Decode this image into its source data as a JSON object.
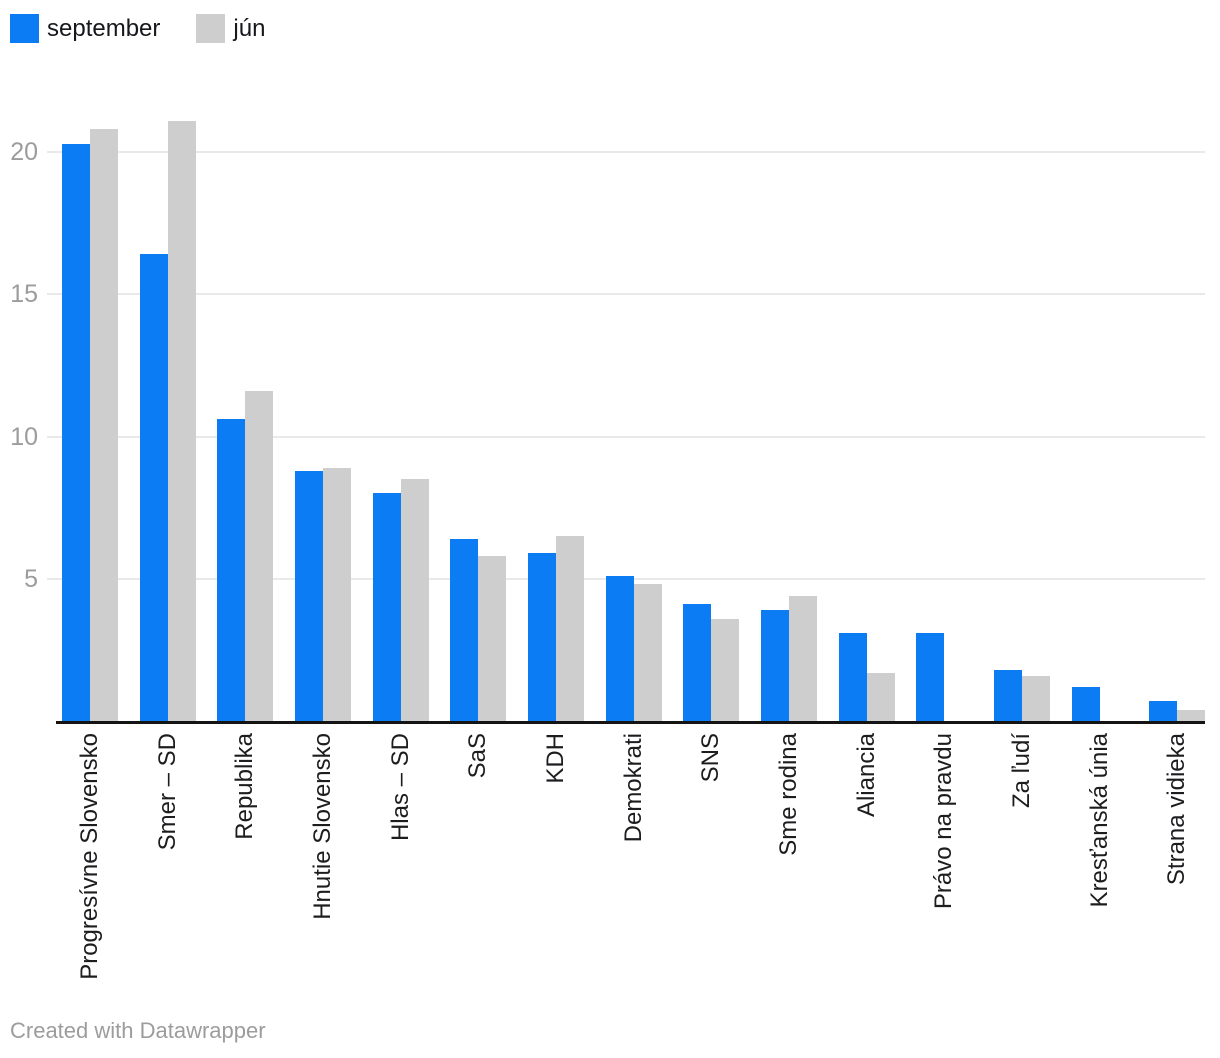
{
  "legend": {
    "items": [
      {
        "label": "september",
        "color": "#0b7cf4"
      },
      {
        "label": "jún",
        "color": "#cecece"
      }
    ]
  },
  "chart_data": {
    "type": "bar",
    "title": "",
    "categories": [
      "Progresívne Slovensko",
      "Smer – SD",
      "Republika",
      "Hnutie Slovensko",
      "Hlas – SD",
      "SaS",
      "KDH",
      "Demokrati",
      "SNS",
      "Sme rodina",
      "Aliancia",
      "Právo na pravdu",
      "Za ľudí",
      "Kresťanská únia",
      "Strana vidieka"
    ],
    "series": [
      {
        "name": "september",
        "color": "#0b7cf4",
        "values": [
          20.3,
          16.4,
          10.6,
          8.8,
          8.0,
          6.4,
          5.9,
          5.1,
          4.1,
          3.9,
          3.1,
          3.1,
          1.8,
          1.2,
          0.7
        ]
      },
      {
        "name": "jún",
        "color": "#cecece",
        "values": [
          20.8,
          21.1,
          11.6,
          8.9,
          8.5,
          5.8,
          6.5,
          4.8,
          3.6,
          4.4,
          1.7,
          null,
          1.6,
          null,
          0.4
        ]
      }
    ],
    "y_ticks": [
      5,
      10,
      15,
      20
    ],
    "ylim": [
      0,
      21.5
    ],
    "grid": "horizontal",
    "legend_position": "top-left",
    "xlabel": "",
    "ylabel": ""
  },
  "footer": {
    "credit": "Created with Datawrapper"
  }
}
